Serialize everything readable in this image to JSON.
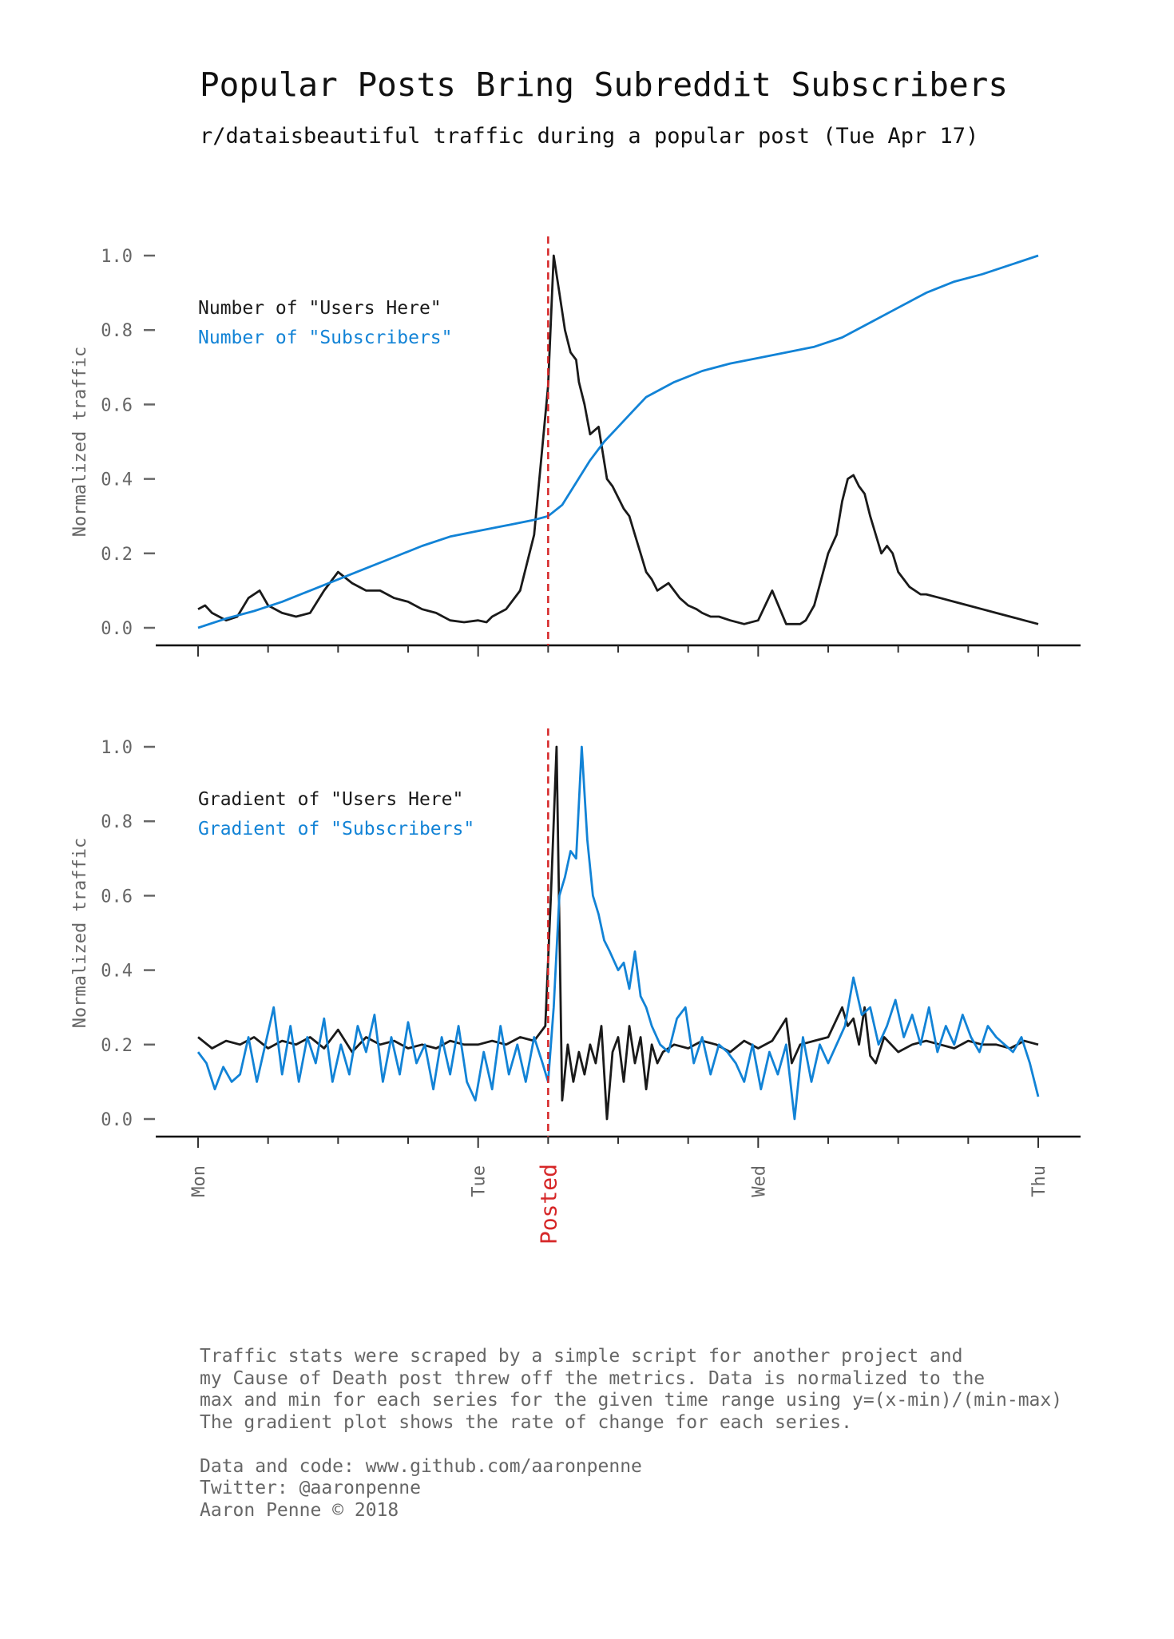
{
  "header": {
    "title": "Popular Posts Bring Subreddit Subscribers",
    "subtitle": "r/dataisbeautiful traffic during a popular post (Tue Apr 17)"
  },
  "colors": {
    "users": "#1a1a1a",
    "subscribers": "#1283d6",
    "posted": "#d62728",
    "text": "#666666"
  },
  "chart_data": [
    {
      "type": "line",
      "ylabel": "Normalized traffic",
      "ylim": [
        0,
        1
      ],
      "yticks": [
        "0.0",
        "0.2",
        "0.4",
        "0.6",
        "0.8",
        "1.0"
      ],
      "xlim": [
        0,
        3
      ],
      "xticks": [
        "Mon",
        "Tue",
        "Wed",
        "Thu"
      ],
      "annotation": {
        "label": "Posted",
        "x": 1.25
      },
      "legend_placement": "top-left",
      "grid": false,
      "series": [
        {
          "name": "Number of \"Users Here\"",
          "x": [
            0,
            0.025,
            0.05,
            0.075,
            0.1,
            0.14,
            0.18,
            0.22,
            0.25,
            0.3,
            0.35,
            0.4,
            0.45,
            0.5,
            0.55,
            0.6,
            0.65,
            0.7,
            0.75,
            0.8,
            0.85,
            0.9,
            0.95,
            1.0,
            1.03,
            1.05,
            1.1,
            1.15,
            1.2,
            1.25,
            1.27,
            1.29,
            1.31,
            1.33,
            1.35,
            1.36,
            1.38,
            1.4,
            1.43,
            1.46,
            1.48,
            1.5,
            1.52,
            1.54,
            1.56,
            1.58,
            1.6,
            1.62,
            1.64,
            1.66,
            1.68,
            1.7,
            1.72,
            1.75,
            1.78,
            1.8,
            1.83,
            1.86,
            1.9,
            1.95,
            2.0,
            2.05,
            2.1,
            2.12,
            2.15,
            2.17,
            2.2,
            2.25,
            2.28,
            2.3,
            2.32,
            2.34,
            2.36,
            2.38,
            2.4,
            2.42,
            2.44,
            2.46,
            2.48,
            2.5,
            2.52,
            2.54,
            2.56,
            2.58,
            2.6,
            2.65,
            2.7,
            2.75,
            2.8,
            2.85,
            2.9,
            2.95,
            3.0
          ],
          "values": [
            0.05,
            0.06,
            0.04,
            0.03,
            0.02,
            0.03,
            0.08,
            0.1,
            0.06,
            0.04,
            0.03,
            0.04,
            0.1,
            0.15,
            0.12,
            0.1,
            0.1,
            0.08,
            0.07,
            0.05,
            0.04,
            0.02,
            0.015,
            0.02,
            0.015,
            0.03,
            0.05,
            0.1,
            0.25,
            0.65,
            1.0,
            0.9,
            0.8,
            0.74,
            0.72,
            0.66,
            0.6,
            0.52,
            0.54,
            0.4,
            0.38,
            0.35,
            0.32,
            0.3,
            0.25,
            0.2,
            0.15,
            0.13,
            0.1,
            0.11,
            0.12,
            0.1,
            0.08,
            0.06,
            0.05,
            0.04,
            0.03,
            0.03,
            0.02,
            0.01,
            0.02,
            0.1,
            0.01,
            0.01,
            0.01,
            0.02,
            0.06,
            0.2,
            0.25,
            0.34,
            0.4,
            0.41,
            0.38,
            0.36,
            0.3,
            0.25,
            0.2,
            0.22,
            0.2,
            0.15,
            0.13,
            0.11,
            0.1,
            0.09,
            0.09,
            0.08,
            0.07,
            0.06,
            0.05,
            0.04,
            0.03,
            0.02,
            0.01
          ]
        },
        {
          "name": "Number of \"Subscribers\"",
          "x": [
            0,
            0.1,
            0.2,
            0.3,
            0.4,
            0.5,
            0.6,
            0.7,
            0.8,
            0.9,
            1.0,
            1.1,
            1.2,
            1.25,
            1.3,
            1.35,
            1.4,
            1.45,
            1.5,
            1.55,
            1.6,
            1.7,
            1.8,
            1.9,
            2.0,
            2.1,
            2.2,
            2.3,
            2.4,
            2.5,
            2.6,
            2.7,
            2.8,
            2.9,
            3.0
          ],
          "values": [
            0.0,
            0.025,
            0.045,
            0.07,
            0.1,
            0.13,
            0.16,
            0.19,
            0.22,
            0.245,
            0.26,
            0.275,
            0.29,
            0.3,
            0.33,
            0.39,
            0.45,
            0.5,
            0.54,
            0.58,
            0.62,
            0.66,
            0.69,
            0.71,
            0.725,
            0.74,
            0.755,
            0.78,
            0.82,
            0.86,
            0.9,
            0.93,
            0.95,
            0.975,
            1.0
          ]
        }
      ]
    },
    {
      "type": "line",
      "ylabel": "Normalized traffic",
      "ylim": [
        0,
        1
      ],
      "yticks": [
        "0.0",
        "0.2",
        "0.4",
        "0.6",
        "0.8",
        "1.0"
      ],
      "xlim": [
        0,
        3
      ],
      "xticks": [
        "Mon",
        "Tue",
        "Wed",
        "Thu"
      ],
      "annotation": {
        "label": "Posted",
        "x": 1.25
      },
      "legend_placement": "top-left",
      "grid": false,
      "series": [
        {
          "name": "Gradient of \"Users Here\"",
          "x": [
            0,
            0.05,
            0.1,
            0.15,
            0.2,
            0.25,
            0.3,
            0.35,
            0.4,
            0.45,
            0.5,
            0.55,
            0.6,
            0.65,
            0.7,
            0.75,
            0.8,
            0.85,
            0.9,
            0.95,
            1.0,
            1.05,
            1.1,
            1.15,
            1.2,
            1.24,
            1.26,
            1.28,
            1.3,
            1.32,
            1.34,
            1.36,
            1.38,
            1.4,
            1.42,
            1.44,
            1.46,
            1.48,
            1.5,
            1.52,
            1.54,
            1.56,
            1.58,
            1.6,
            1.62,
            1.64,
            1.66,
            1.7,
            1.75,
            1.8,
            1.85,
            1.9,
            1.95,
            2.0,
            2.05,
            2.1,
            2.12,
            2.15,
            2.2,
            2.25,
            2.3,
            2.32,
            2.34,
            2.36,
            2.38,
            2.4,
            2.42,
            2.45,
            2.5,
            2.55,
            2.6,
            2.65,
            2.7,
            2.75,
            2.8,
            2.85,
            2.9,
            2.95,
            3.0
          ],
          "values": [
            0.22,
            0.19,
            0.21,
            0.2,
            0.22,
            0.19,
            0.21,
            0.2,
            0.22,
            0.19,
            0.24,
            0.18,
            0.22,
            0.2,
            0.21,
            0.19,
            0.2,
            0.19,
            0.21,
            0.2,
            0.2,
            0.21,
            0.2,
            0.22,
            0.21,
            0.25,
            0.6,
            1.0,
            0.05,
            0.2,
            0.1,
            0.18,
            0.12,
            0.2,
            0.15,
            0.25,
            0.0,
            0.18,
            0.22,
            0.1,
            0.25,
            0.15,
            0.22,
            0.08,
            0.2,
            0.15,
            0.18,
            0.2,
            0.19,
            0.21,
            0.2,
            0.18,
            0.21,
            0.19,
            0.21,
            0.27,
            0.15,
            0.2,
            0.21,
            0.22,
            0.3,
            0.25,
            0.27,
            0.2,
            0.3,
            0.17,
            0.15,
            0.22,
            0.18,
            0.2,
            0.21,
            0.2,
            0.19,
            0.21,
            0.2,
            0.2,
            0.19,
            0.21,
            0.2
          ]
        },
        {
          "name": "Gradient of \"Subscribers\"",
          "x": [
            0,
            0.03,
            0.06,
            0.09,
            0.12,
            0.15,
            0.18,
            0.21,
            0.24,
            0.27,
            0.3,
            0.33,
            0.36,
            0.39,
            0.42,
            0.45,
            0.48,
            0.51,
            0.54,
            0.57,
            0.6,
            0.63,
            0.66,
            0.69,
            0.72,
            0.75,
            0.78,
            0.81,
            0.84,
            0.87,
            0.9,
            0.93,
            0.96,
            0.99,
            1.02,
            1.05,
            1.08,
            1.11,
            1.14,
            1.17,
            1.2,
            1.23,
            1.25,
            1.27,
            1.29,
            1.31,
            1.33,
            1.35,
            1.37,
            1.39,
            1.41,
            1.43,
            1.45,
            1.47,
            1.5,
            1.52,
            1.54,
            1.56,
            1.58,
            1.6,
            1.62,
            1.65,
            1.68,
            1.71,
            1.74,
            1.77,
            1.8,
            1.83,
            1.86,
            1.89,
            1.92,
            1.95,
            1.98,
            2.01,
            2.04,
            2.07,
            2.1,
            2.13,
            2.16,
            2.19,
            2.22,
            2.25,
            2.28,
            2.31,
            2.34,
            2.37,
            2.4,
            2.43,
            2.46,
            2.49,
            2.52,
            2.55,
            2.58,
            2.61,
            2.64,
            2.67,
            2.7,
            2.73,
            2.76,
            2.79,
            2.82,
            2.85,
            2.88,
            2.91,
            2.94,
            2.97,
            3.0
          ],
          "values": [
            0.18,
            0.15,
            0.08,
            0.14,
            0.1,
            0.12,
            0.22,
            0.1,
            0.2,
            0.3,
            0.12,
            0.25,
            0.1,
            0.22,
            0.15,
            0.27,
            0.1,
            0.2,
            0.12,
            0.25,
            0.18,
            0.28,
            0.1,
            0.22,
            0.12,
            0.26,
            0.15,
            0.2,
            0.08,
            0.22,
            0.12,
            0.25,
            0.1,
            0.05,
            0.18,
            0.08,
            0.25,
            0.12,
            0.2,
            0.1,
            0.22,
            0.15,
            0.1,
            0.3,
            0.6,
            0.65,
            0.72,
            0.7,
            1.0,
            0.75,
            0.6,
            0.55,
            0.48,
            0.45,
            0.4,
            0.42,
            0.35,
            0.45,
            0.33,
            0.3,
            0.25,
            0.2,
            0.18,
            0.27,
            0.3,
            0.15,
            0.22,
            0.12,
            0.2,
            0.18,
            0.15,
            0.1,
            0.2,
            0.08,
            0.18,
            0.12,
            0.2,
            0.0,
            0.22,
            0.1,
            0.2,
            0.15,
            0.2,
            0.25,
            0.38,
            0.28,
            0.3,
            0.2,
            0.25,
            0.32,
            0.22,
            0.28,
            0.2,
            0.3,
            0.18,
            0.25,
            0.2,
            0.28,
            0.22,
            0.18,
            0.25,
            0.22,
            0.2,
            0.18,
            0.22,
            0.15,
            0.06
          ]
        }
      ]
    }
  ],
  "footnote": {
    "lines": [
      "Traffic stats were scraped by a simple script for another project and",
      "my Cause of Death post threw off the metrics. Data is normalized to the",
      "max and min for each series for the given time range using y=(x-min)/(min-max)",
      "The gradient plot shows the rate of change for each series.",
      "",
      "Data and code: www.github.com/aaronpenne",
      "Twitter: @aaronpenne",
      "Aaron Penne © 2018"
    ]
  }
}
